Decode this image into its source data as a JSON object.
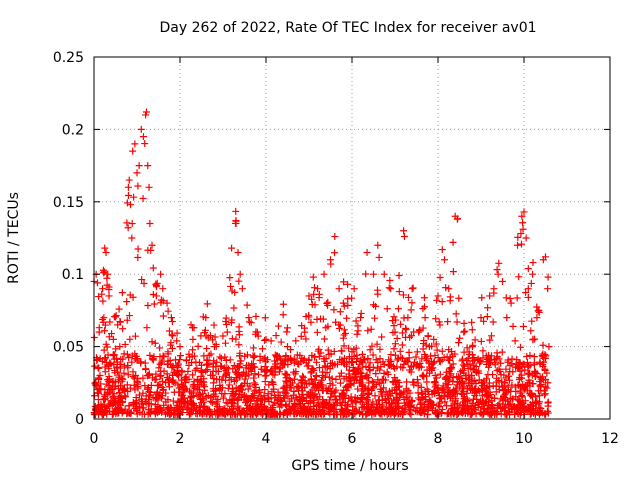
{
  "chart_data": {
    "type": "scatter",
    "title": "Day 262 of 2022, Rate Of TEC Index for receiver av01",
    "xlabel": "GPS time / hours",
    "ylabel": "ROTI / TECUs",
    "xlim": [
      0,
      12
    ],
    "ylim": [
      0,
      0.25
    ],
    "x_ticks": [
      0,
      2,
      4,
      6,
      8,
      10,
      12
    ],
    "x_tick_labels": [
      "0",
      "2",
      "4",
      "6",
      "8",
      "10",
      "12"
    ],
    "y_ticks": [
      0,
      0.05,
      0.1,
      0.15,
      0.2,
      0.25
    ],
    "y_tick_labels": [
      "0",
      "0.05",
      "0.1",
      "0.15",
      "0.2",
      "0.25"
    ],
    "grid": true,
    "marker": "+",
    "series": [
      {
        "name": "ROTI",
        "color": "#ff0000",
        "x_range": [
          0.0,
          10.6
        ],
        "points": [
          [
            0.0,
            0.095
          ],
          [
            0.05,
            0.1
          ],
          [
            0.08,
            0.094
          ],
          [
            0.12,
            0.06
          ],
          [
            0.2,
            0.09
          ],
          [
            0.25,
            0.118
          ],
          [
            0.28,
            0.115
          ],
          [
            0.32,
            0.1
          ],
          [
            0.35,
            0.085
          ],
          [
            0.45,
            0.055
          ],
          [
            0.55,
            0.065
          ],
          [
            0.6,
            0.05
          ],
          [
            0.7,
            0.045
          ],
          [
            0.8,
            0.16
          ],
          [
            0.82,
            0.165
          ],
          [
            0.85,
            0.148
          ],
          [
            0.88,
            0.125
          ],
          [
            0.9,
            0.185
          ],
          [
            0.95,
            0.19
          ],
          [
            1.0,
            0.17
          ],
          [
            1.05,
            0.175
          ],
          [
            1.1,
            0.2
          ],
          [
            1.15,
            0.195
          ],
          [
            1.2,
            0.21
          ],
          [
            1.22,
            0.212
          ],
          [
            1.25,
            0.175
          ],
          [
            1.28,
            0.16
          ],
          [
            1.3,
            0.135
          ],
          [
            1.35,
            0.12
          ],
          [
            1.45,
            0.085
          ],
          [
            1.55,
            0.1
          ],
          [
            1.6,
            0.09
          ],
          [
            1.7,
            0.08
          ],
          [
            1.8,
            0.07
          ],
          [
            2.0,
            0.05
          ],
          [
            2.3,
            0.055
          ],
          [
            2.6,
            0.07
          ],
          [
            2.8,
            0.05
          ],
          [
            3.1,
            0.06
          ],
          [
            3.2,
            0.118
          ],
          [
            3.3,
            0.137
          ],
          [
            3.35,
            0.115
          ],
          [
            3.4,
            0.1
          ],
          [
            3.45,
            0.09
          ],
          [
            3.6,
            0.07
          ],
          [
            3.8,
            0.06
          ],
          [
            4.0,
            0.055
          ],
          [
            4.2,
            0.04
          ],
          [
            4.4,
            0.072
          ],
          [
            4.5,
            0.05
          ],
          [
            4.7,
            0.04
          ],
          [
            4.9,
            0.06
          ],
          [
            5.0,
            0.085
          ],
          [
            5.1,
            0.098
          ],
          [
            5.2,
            0.09
          ],
          [
            5.35,
            0.1
          ],
          [
            5.5,
            0.11
          ],
          [
            5.6,
            0.126
          ],
          [
            5.7,
            0.09
          ],
          [
            5.8,
            0.08
          ],
          [
            5.9,
            0.083
          ],
          [
            6.05,
            0.09
          ],
          [
            6.2,
            0.07
          ],
          [
            6.35,
            0.115
          ],
          [
            6.5,
            0.1
          ],
          [
            6.6,
            0.12
          ],
          [
            6.75,
            0.1
          ],
          [
            6.9,
            0.09
          ],
          [
            7.0,
            0.06
          ],
          [
            7.1,
            0.088
          ],
          [
            7.2,
            0.13
          ],
          [
            7.3,
            0.07
          ],
          [
            7.4,
            0.09
          ],
          [
            7.55,
            0.06
          ],
          [
            7.7,
            0.07
          ],
          [
            7.8,
            0.05
          ],
          [
            7.9,
            0.055
          ],
          [
            8.0,
            0.085
          ],
          [
            8.1,
            0.117
          ],
          [
            8.15,
            0.11
          ],
          [
            8.25,
            0.09
          ],
          [
            8.35,
            0.122
          ],
          [
            8.4,
            0.14
          ],
          [
            8.45,
            0.138
          ],
          [
            8.6,
            0.06
          ],
          [
            8.8,
            0.05
          ],
          [
            9.0,
            0.07
          ],
          [
            9.2,
            0.085
          ],
          [
            9.3,
            0.09
          ],
          [
            9.4,
            0.1
          ],
          [
            9.5,
            0.095
          ],
          [
            9.6,
            0.07
          ],
          [
            9.7,
            0.08
          ],
          [
            9.85,
            0.12
          ],
          [
            9.95,
            0.14
          ],
          [
            10.0,
            0.143
          ],
          [
            10.05,
            0.125
          ],
          [
            10.1,
            0.09
          ],
          [
            10.2,
            0.1
          ],
          [
            10.3,
            0.07
          ],
          [
            10.45,
            0.11
          ],
          [
            10.5,
            0.112
          ],
          [
            10.55,
            0.09
          ],
          [
            10.58,
            0.05
          ]
        ],
        "baseline_band": [
          0.003,
          0.045
        ]
      }
    ]
  }
}
